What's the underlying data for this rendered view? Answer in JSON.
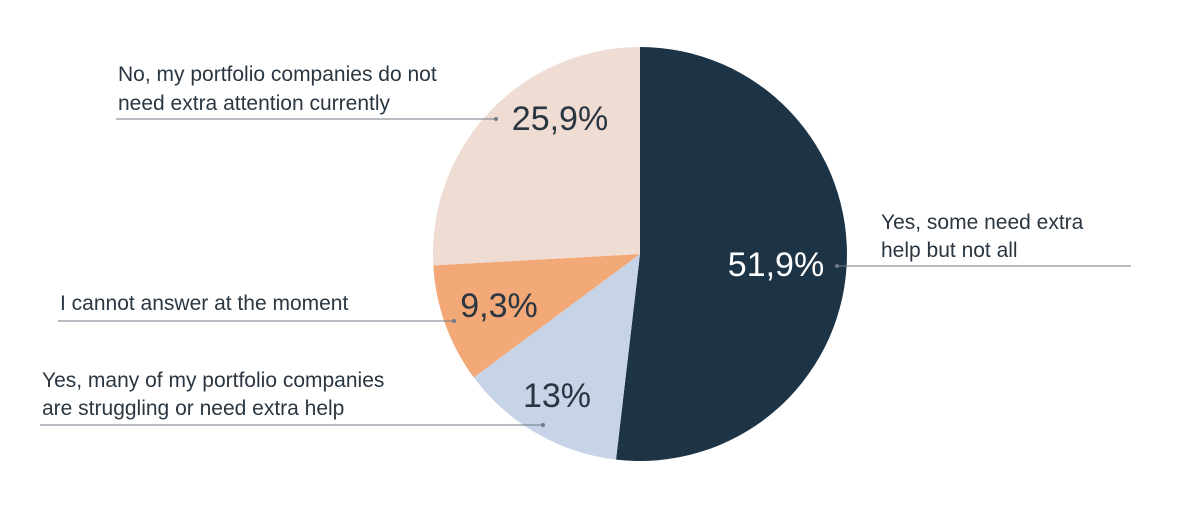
{
  "chart_data": {
    "type": "pie",
    "slices": [
      {
        "value": 51.9,
        "label": "51,9%",
        "color": "#1d3446",
        "label_color": "#ffffff",
        "legend": [
          "Yes, some need extra",
          "help but not all"
        ]
      },
      {
        "value": 13,
        "label": "13%",
        "color": "#c7d3e6",
        "label_color": "#2a3641",
        "legend": [
          "Yes, many of my portfolio companies",
          "are struggling or need extra help"
        ]
      },
      {
        "value": 9.3,
        "label": "9,3%",
        "color": "#f2a877",
        "label_color": "#2a3641",
        "legend": [
          "I cannot answer at the moment"
        ]
      },
      {
        "value": 25.9,
        "label": "25,9%",
        "color": "#efdcd3",
        "label_color": "#2a3641",
        "legend": [
          "No, my portfolio companies do not",
          "need extra attention currently"
        ]
      }
    ]
  }
}
